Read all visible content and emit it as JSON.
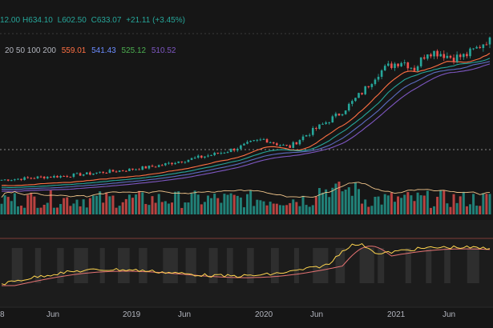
{
  "ohlc": {
    "open": "12.00",
    "high_label": "H",
    "high": "634.10",
    "low_label": "L",
    "low": "602.50",
    "close_label": "C",
    "close": "633.07",
    "change": "+21.11 (+3.45%)"
  },
  "ma_legend": {
    "periods": "20 50 100 200",
    "ma20": "559.01",
    "ma50": "541.43",
    "ma100": "525.12",
    "ma200": "510.52"
  },
  "colors": {
    "background": "#161616",
    "up": "#26a69a",
    "down": "#ef5350",
    "ma20": "#ff7043",
    "ma50": "#26a69a",
    "ma100": "#5c6bc0",
    "ma200": "#7e57c2",
    "volume_ma": "#f0c48a",
    "osc_fast": "#ffd54f",
    "osc_slow": "#e57373",
    "text": "#b2b5be"
  },
  "x_axis": [
    "8",
    "Jun",
    "2019",
    "Jun",
    "2020",
    "Jun",
    "2021",
    "Jun"
  ],
  "chart_data": {
    "type": "line",
    "series": [
      {
        "values": [
          188,
          190,
          193,
          196,
          198,
          200,
          204,
          207,
          212,
          215,
          219,
          224,
          229,
          236,
          245,
          252,
          260,
          268,
          278,
          290,
          305,
          315,
          300,
          290,
          320,
          345,
          370,
          395,
          430,
          470,
          520,
          545,
          560,
          535,
          590,
          585,
          570,
          575,
          600,
          633
        ]
      }
    ]
  }
}
